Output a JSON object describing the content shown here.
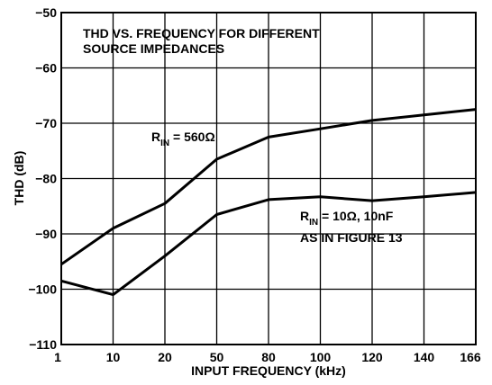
{
  "chart_data": {
    "type": "line",
    "title": "THD VS. FREQUENCY FOR DIFFERENT\nSOURCE IMPEDANCES",
    "xlabel": "INPUT FREQUENCY (kHz)",
    "ylabel": "THD (dB)",
    "categories": [
      "1",
      "10",
      "20",
      "50",
      "80",
      "100",
      "120",
      "140",
      "166"
    ],
    "ylim": [
      -110,
      -50
    ],
    "yticks": [
      "−50",
      "−60",
      "−70",
      "−80",
      "−90",
      "−100",
      "−110"
    ],
    "grid": true,
    "series": [
      {
        "name_main": "R",
        "name_sub": "IN",
        "name_rest": " = 560Ω",
        "values": [
          -95.5,
          -89,
          -84.5,
          -76.5,
          -72.5,
          -71,
          -69.5,
          -68.5,
          -67.5
        ]
      },
      {
        "name_main": "R",
        "name_sub": "IN",
        "name_rest": " = 10Ω, 10nF",
        "name_line2": "AS IN FIGURE 13",
        "values": [
          -98.5,
          -101,
          -94,
          -86.5,
          -83.8,
          -83.3,
          -84,
          -83.3,
          -82.5
        ]
      }
    ]
  }
}
